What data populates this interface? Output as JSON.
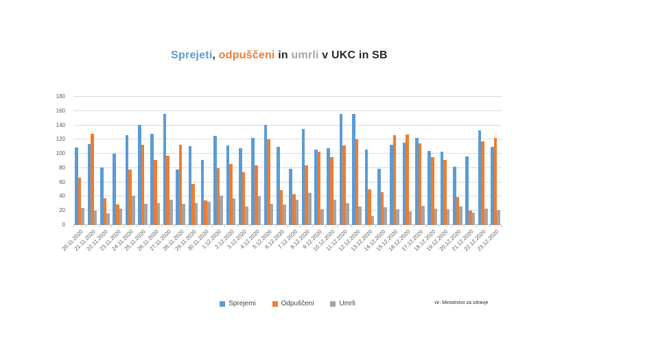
{
  "title": {
    "segments": [
      {
        "text": "Sprejeti",
        "color": "#5B9BD5"
      },
      {
        "text": ", ",
        "color": "#262626"
      },
      {
        "text": "odpuščeni",
        "color": "#ED7D31"
      },
      {
        "text": " in ",
        "color": "#262626"
      },
      {
        "text": "umrli",
        "color": "#A5A5A5"
      },
      {
        "text": " v UKC in SB",
        "color": "#262626"
      }
    ]
  },
  "source": "vir: Ministrstvo za zdravje",
  "chart_data": {
    "type": "bar",
    "title": "Sprejeti, odpuščeni in umrli v UKC in SB",
    "categories": [
      "20.11.2020",
      "21.11.2020",
      "22.11.2020",
      "23.11.2020",
      "24.11.2020",
      "25.11.2020",
      "26.11.2020",
      "27.11.2020",
      "28.11.2020",
      "29.11.2020",
      "30.11.2020",
      "1.12.2020",
      "2.12.2020",
      "3.12.2020",
      "4.12.2020",
      "5.12.2020",
      "6.12.2020",
      "7.12.2020",
      "8.12.2020",
      "9.12.2020",
      "10.12.2020",
      "11.12.2020",
      "12.12.2020",
      "13.12.2020",
      "14.12.2020",
      "15.12.2020",
      "16.12.2020",
      "17.12.2020",
      "18.12.2020",
      "19.12.2020",
      "20.12.2020",
      "21.12.2020",
      "22.12.2020",
      "23.12.2020"
    ],
    "series": [
      {
        "name": "Sprejemi",
        "color": "#5B9BD5",
        "values": [
          109,
          114,
          81,
          100,
          126,
          141,
          128,
          156,
          78,
          111,
          91,
          125,
          112,
          108,
          122,
          141,
          110,
          79,
          135,
          106,
          108,
          156,
          156,
          106,
          79,
          113,
          116,
          122,
          104,
          103,
          82,
          96,
          133,
          110
        ]
      },
      {
        "name": "Odpuščeni",
        "color": "#ED7D31",
        "values": [
          66,
          128,
          38,
          29,
          78,
          113,
          91,
          97,
          113,
          58,
          35,
          80,
          86,
          74,
          84,
          120,
          49,
          43,
          84,
          103,
          95,
          112,
          120,
          50,
          46,
          126,
          127,
          115,
          95,
          91,
          39,
          20,
          117,
          122
        ]
      },
      {
        "name": "Umrli",
        "color": "#A5A5A5",
        "values": [
          24,
          20,
          16,
          23,
          41,
          30,
          31,
          36,
          30,
          31,
          33,
          41,
          38,
          26,
          40,
          30,
          29,
          36,
          45,
          22,
          36,
          31,
          26,
          13,
          25,
          22,
          19,
          27,
          23,
          22,
          26,
          17,
          23,
          21
        ]
      }
    ],
    "ylim": [
      0,
      180
    ],
    "ytick_step": 20,
    "grid": true,
    "legend_position": "bottom"
  }
}
